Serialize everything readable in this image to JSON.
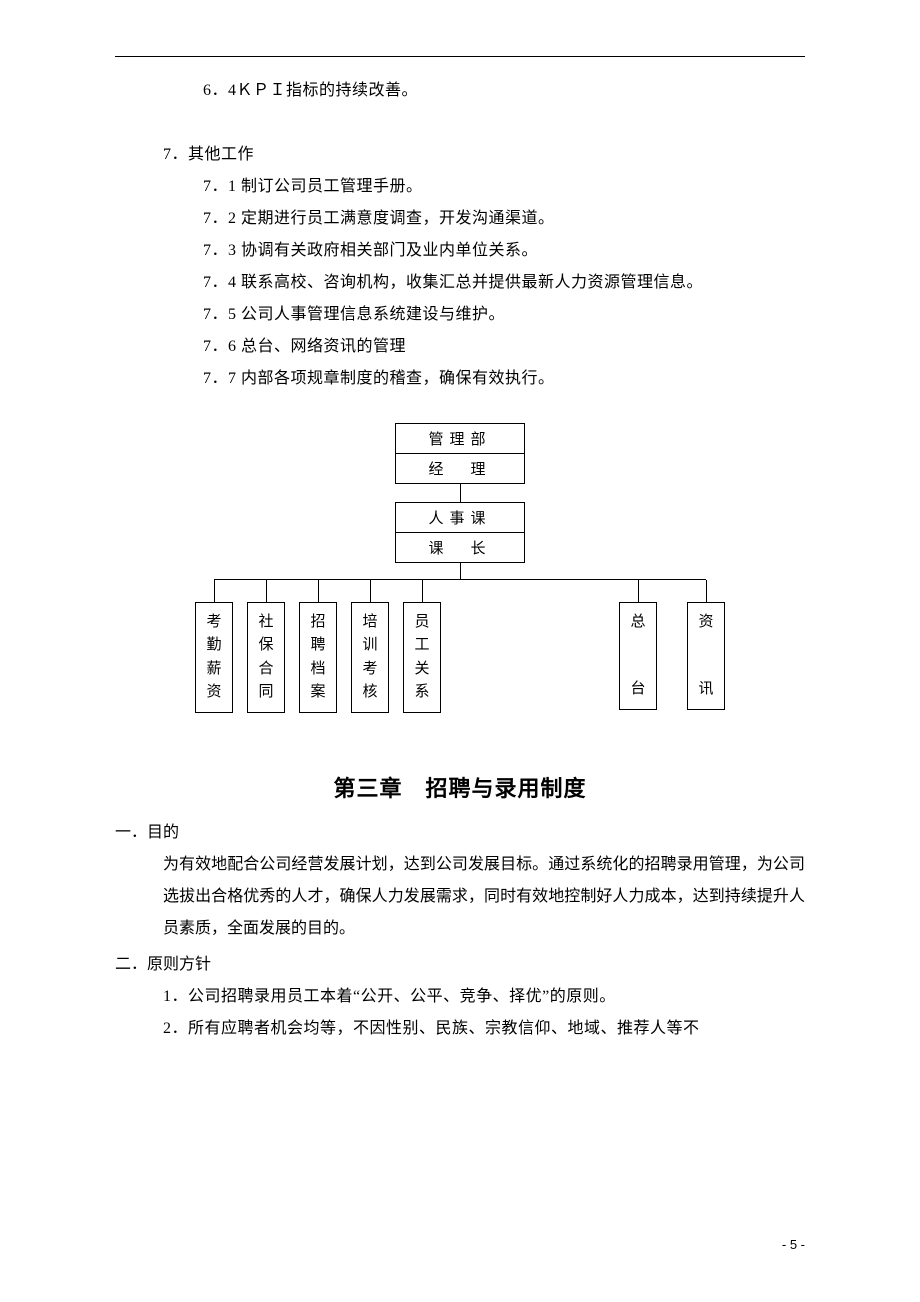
{
  "text": {
    "l_6_4": "6．4ＫＰＩ指标的持续改善。",
    "l_7": "7．其他工作",
    "l_7_1": "7．1 制订公司员工管理手册。",
    "l_7_2": "7．2 定期进行员工满意度调查，开发沟通渠道。",
    "l_7_3": "7．3 协调有关政府相关部门及业内单位关系。",
    "l_7_4": "7．4 联系高校、咨询机构，收集汇总并提供最新人力资源管理信息。",
    "l_7_5": "7．5 公司人事管理信息系统建设与维护。",
    "l_7_6": "7．6 总台、网络资讯的管理",
    "l_7_7": "7．7 内部各项规章制度的稽查，确保有效执行。",
    "chapter": "第三章　招聘与录用制度",
    "sec1_h": "一．目的",
    "sec1_p": "为有效地配合公司经营发展计划，达到公司发展目标。通过系统化的招聘录用管理，为公司选拔出合格优秀的人才，确保人力发展需求，同时有效地控制好人力成本，达到持续提升人员素质，全面发展的目的。",
    "sec2_h": "二．原则方针",
    "sec2_1": "1．公司招聘录用员工本着“公开、公平、竞争、择优”的原则。",
    "sec2_2": "2．所有应聘者机会均等，不因性别、民族、宗教信仰、地域、推荐人等不",
    "page_num": "- 5 -"
  },
  "org": {
    "top1": "管理部",
    "top2": "经　理",
    "mid1": "人事课",
    "mid2": "课　长",
    "leaves": [
      {
        "chars": [
          "考",
          "勤",
          "薪",
          "资"
        ],
        "mode": "tight"
      },
      {
        "chars": [
          "社",
          "保",
          "合",
          "同"
        ],
        "mode": "tight"
      },
      {
        "chars": [
          "招",
          "聘",
          "档",
          "案"
        ],
        "mode": "tight"
      },
      {
        "chars": [
          "培",
          "训",
          "考",
          "核"
        ],
        "mode": "tight"
      },
      {
        "chars": [
          "员",
          "工",
          "关",
          "系"
        ],
        "mode": "tight"
      },
      {
        "chars": [
          "总",
          "台"
        ],
        "mode": "spread"
      },
      {
        "chars": [
          "资",
          "讯"
        ],
        "mode": "spread"
      }
    ],
    "colors": {
      "line": "#000000",
      "bg": "#ffffff",
      "text": "#000000"
    }
  }
}
